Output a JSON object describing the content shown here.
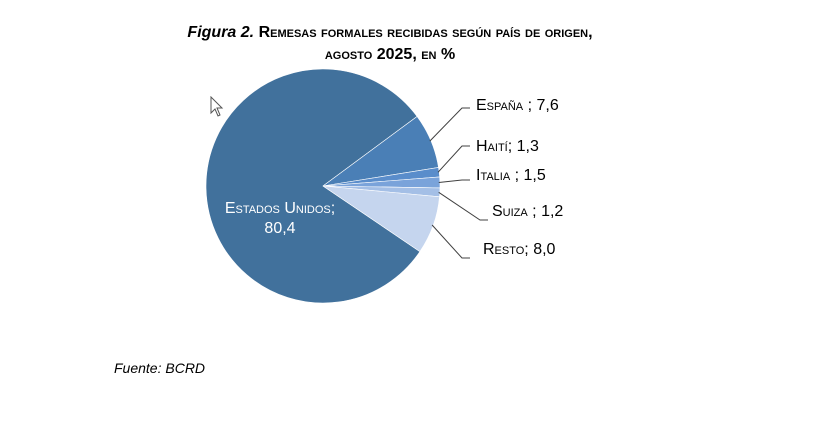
{
  "title": {
    "figure": "Figura 2.",
    "line1": "Remesas formales recibidas según país de origen,",
    "line2_year_prefix": "agosto ",
    "line2_year": "2025",
    "line2_suffix": ", en %"
  },
  "source": "Fuente: BCRD",
  "chart_data": {
    "type": "pie",
    "title": "Figura 2. Remesas formales recibidas según país de origen, agosto 2025, en %",
    "slices": [
      {
        "label": "Estados Unidos",
        "value": 80.4,
        "display": "80,4",
        "color": "#41719c"
      },
      {
        "label": "España",
        "value": 7.6,
        "display": "7,6",
        "color": "#4a7fb6"
      },
      {
        "label": "Haití",
        "value": 1.3,
        "display": "1,3",
        "color": "#5a8dcb"
      },
      {
        "label": "Italia",
        "value": 1.5,
        "display": "1,5",
        "color": "#7aa3da"
      },
      {
        "label": "Suiza",
        "value": 1.2,
        "display": "1,2",
        "color": "#a4bfe6"
      },
      {
        "label": "Resto",
        "value": 8.0,
        "display": "8,0",
        "color": "#c5d5ee"
      }
    ],
    "labels": {
      "estados_unidos_name": "Estados Unidos;",
      "estados_unidos_value": "80,4",
      "espana": "España ; 7,6",
      "haiti": "Haití; 1,3",
      "italia": "Italia ; 1,5",
      "suiza": "Suiza ; 1,2",
      "resto": "Resto; 8,0"
    }
  }
}
